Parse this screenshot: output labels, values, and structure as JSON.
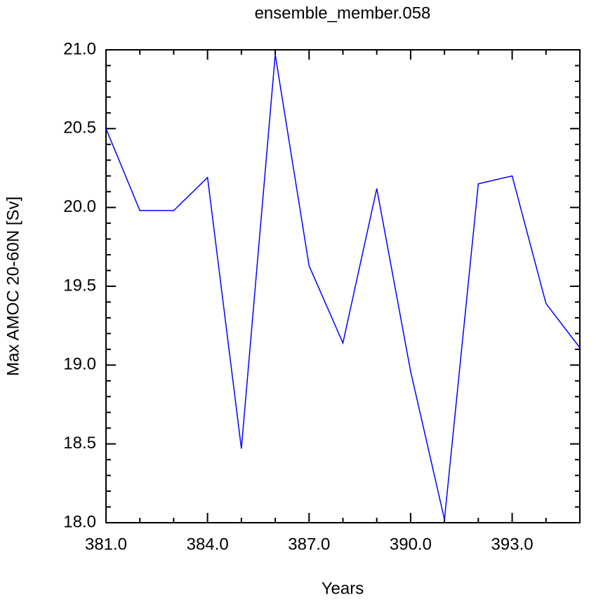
{
  "chart_data": {
    "type": "line",
    "title": "ensemble_member.058",
    "x_label": "Years",
    "y_label": "Max AMOC 20-60N [Sv]",
    "x": [
      381,
      382,
      383,
      384,
      385,
      386,
      387,
      388,
      389,
      390,
      391,
      392,
      393,
      394,
      395
    ],
    "series": [
      {
        "name": "ensemble_member.058",
        "color": "#0000ff",
        "values": [
          20.5,
          19.98,
          19.98,
          20.19,
          18.47,
          20.97,
          19.63,
          19.14,
          20.12,
          18.96,
          18.02,
          20.15,
          20.2,
          19.39,
          19.11
        ]
      }
    ],
    "xlim": [
      381,
      395
    ],
    "ylim": [
      18,
      21
    ],
    "xticks": [
      {
        "value": 381,
        "label": "381.0"
      },
      {
        "value": 384,
        "label": "384.0"
      },
      {
        "value": 387,
        "label": "387.0"
      },
      {
        "value": 390,
        "label": "390.0"
      },
      {
        "value": 393,
        "label": "393.0"
      }
    ],
    "yticks": [
      {
        "value": 18,
        "label": "18.0"
      },
      {
        "value": 18.5,
        "label": "18.5"
      },
      {
        "value": 19,
        "label": "19.0"
      },
      {
        "value": 19.5,
        "label": "19.5"
      },
      {
        "value": 20,
        "label": "20.0"
      },
      {
        "value": 20.5,
        "label": "20.5"
      },
      {
        "value": 21,
        "label": "21.0"
      }
    ],
    "grid": false
  }
}
